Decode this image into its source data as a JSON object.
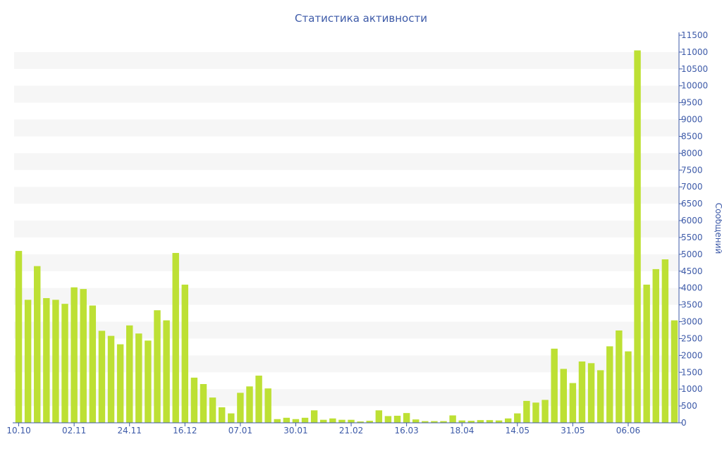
{
  "chart_data": {
    "type": "bar",
    "title": "Статистика активности",
    "xlabel": "",
    "ylabel": "Сообщений",
    "ylim": [
      0,
      11500
    ],
    "y_ticks": [
      0,
      500,
      1000,
      1500,
      2000,
      2500,
      3000,
      3500,
      4000,
      4500,
      5000,
      5500,
      6000,
      6500,
      7000,
      7500,
      8000,
      8500,
      9000,
      9500,
      10000,
      10500,
      11000,
      11500
    ],
    "x_tick_labels": [
      {
        "index": 0,
        "label": "10.10"
      },
      {
        "index": 6,
        "label": "02.11"
      },
      {
        "index": 12,
        "label": "24.11"
      },
      {
        "index": 18,
        "label": "16.12"
      },
      {
        "index": 24,
        "label": "07.01"
      },
      {
        "index": 30,
        "label": "30.01"
      },
      {
        "index": 36,
        "label": "21.02"
      },
      {
        "index": 42,
        "label": "16.03"
      },
      {
        "index": 48,
        "label": "18.04"
      },
      {
        "index": 54,
        "label": "14.05"
      },
      {
        "index": 60,
        "label": "31.05"
      },
      {
        "index": 66,
        "label": "06.06"
      }
    ],
    "values": [
      5100,
      3650,
      4650,
      3700,
      3650,
      3530,
      4020,
      3970,
      3480,
      2730,
      2580,
      2330,
      2890,
      2650,
      2440,
      3340,
      3040,
      5040,
      4100,
      1340,
      1150,
      750,
      460,
      280,
      890,
      1080,
      1400,
      1020,
      110,
      150,
      110,
      150,
      370,
      90,
      130,
      90,
      90,
      40,
      60,
      370,
      200,
      210,
      290,
      100,
      50,
      50,
      50,
      220,
      70,
      60,
      80,
      80,
      70,
      130,
      280,
      650,
      600,
      680,
      2200,
      1600,
      1180,
      1820,
      1770,
      1560,
      2270,
      2740,
      2120,
      11050,
      4100,
      4560,
      4850,
      3040
    ],
    "bar_color": "#bde034",
    "axis_color": "#3d5aa8",
    "band_color": "#f6f6f6",
    "grid": true,
    "legend": "none"
  }
}
